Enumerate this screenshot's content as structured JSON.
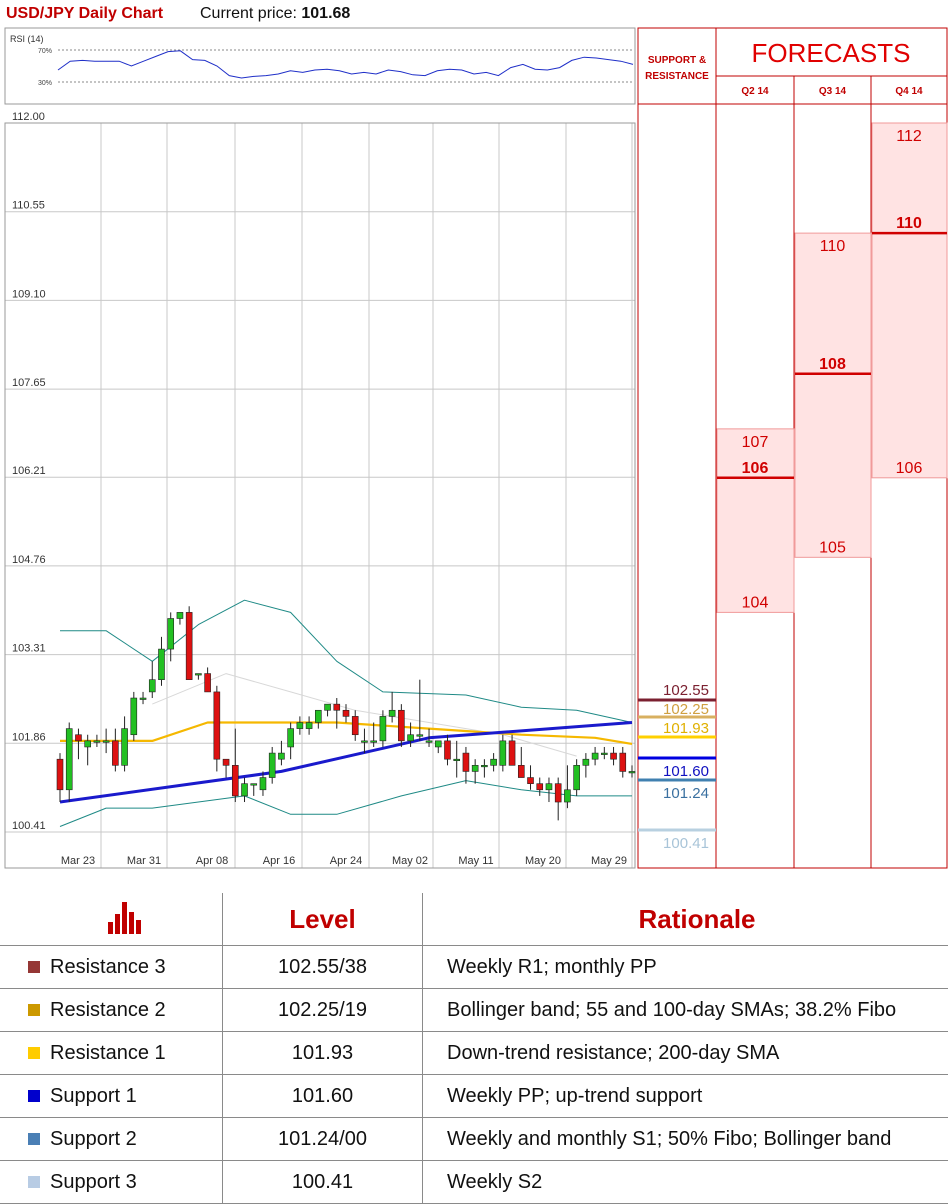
{
  "header": {
    "title": "USD/JPY Daily Chart",
    "price_label": "Current price:",
    "price_value": "101.68"
  },
  "chart_data": {
    "type": "candlestick",
    "title": "USD/JPY Daily Chart",
    "y_ticks": [
      "112.00",
      "110.55",
      "109.10",
      "107.65",
      "106.21",
      "104.76",
      "103.31",
      "101.86",
      "100.41"
    ],
    "ylim": [
      99.9,
      112.0
    ],
    "x_ticks": [
      "Mar 23",
      "Mar 31",
      "Apr 08",
      "Apr 16",
      "Apr 24",
      "May 02",
      "May 11",
      "May 20",
      "May 29"
    ],
    "grid": true,
    "candles": [
      {
        "o": 101.6,
        "h": 101.7,
        "l": 100.9,
        "c": 101.1
      },
      {
        "o": 101.1,
        "h": 102.2,
        "l": 100.9,
        "c": 102.1
      },
      {
        "o": 102.0,
        "h": 102.1,
        "l": 101.6,
        "c": 101.9
      },
      {
        "o": 101.8,
        "h": 102.0,
        "l": 101.5,
        "c": 101.9
      },
      {
        "o": 101.9,
        "h": 102.0,
        "l": 101.8,
        "c": 101.9
      },
      {
        "o": 101.9,
        "h": 102.1,
        "l": 101.7,
        "c": 101.9
      },
      {
        "o": 101.9,
        "h": 102.1,
        "l": 101.4,
        "c": 101.5
      },
      {
        "o": 101.5,
        "h": 102.3,
        "l": 101.4,
        "c": 102.1
      },
      {
        "o": 102.0,
        "h": 102.7,
        "l": 101.9,
        "c": 102.6
      },
      {
        "o": 102.6,
        "h": 102.7,
        "l": 102.5,
        "c": 102.6
      },
      {
        "o": 102.7,
        "h": 103.2,
        "l": 102.6,
        "c": 102.9
      },
      {
        "o": 102.9,
        "h": 103.6,
        "l": 102.8,
        "c": 103.4
      },
      {
        "o": 103.4,
        "h": 104.0,
        "l": 103.2,
        "c": 103.9
      },
      {
        "o": 103.9,
        "h": 104.0,
        "l": 103.8,
        "c": 104.0
      },
      {
        "o": 104.0,
        "h": 104.1,
        "l": 102.9,
        "c": 102.9
      },
      {
        "o": 103.0,
        "h": 103.0,
        "l": 102.9,
        "c": 103.0
      },
      {
        "o": 103.0,
        "h": 103.1,
        "l": 102.7,
        "c": 102.7
      },
      {
        "o": 102.7,
        "h": 102.8,
        "l": 101.4,
        "c": 101.6
      },
      {
        "o": 101.6,
        "h": 101.6,
        "l": 101.3,
        "c": 101.5
      },
      {
        "o": 101.5,
        "h": 102.1,
        "l": 100.9,
        "c": 101.0
      },
      {
        "o": 101.0,
        "h": 101.3,
        "l": 100.9,
        "c": 101.2
      },
      {
        "o": 101.2,
        "h": 101.2,
        "l": 101.0,
        "c": 101.2
      },
      {
        "o": 101.1,
        "h": 101.4,
        "l": 101.0,
        "c": 101.3
      },
      {
        "o": 101.3,
        "h": 101.8,
        "l": 101.2,
        "c": 101.7
      },
      {
        "o": 101.6,
        "h": 101.9,
        "l": 101.5,
        "c": 101.7
      },
      {
        "o": 101.8,
        "h": 102.2,
        "l": 101.6,
        "c": 102.1
      },
      {
        "o": 102.1,
        "h": 102.3,
        "l": 102.0,
        "c": 102.2
      },
      {
        "o": 102.1,
        "h": 102.3,
        "l": 102.0,
        "c": 102.2
      },
      {
        "o": 102.2,
        "h": 102.4,
        "l": 102.1,
        "c": 102.4
      },
      {
        "o": 102.4,
        "h": 102.5,
        "l": 102.3,
        "c": 102.5
      },
      {
        "o": 102.5,
        "h": 102.6,
        "l": 102.1,
        "c": 102.4
      },
      {
        "o": 102.4,
        "h": 102.5,
        "l": 102.2,
        "c": 102.3
      },
      {
        "o": 102.3,
        "h": 102.4,
        "l": 101.9,
        "c": 102.0
      },
      {
        "o": 101.9,
        "h": 102.1,
        "l": 101.7,
        "c": 101.9
      },
      {
        "o": 101.9,
        "h": 102.2,
        "l": 101.8,
        "c": 101.9
      },
      {
        "o": 101.9,
        "h": 102.4,
        "l": 101.8,
        "c": 102.3
      },
      {
        "o": 102.3,
        "h": 102.7,
        "l": 102.2,
        "c": 102.4
      },
      {
        "o": 102.4,
        "h": 102.5,
        "l": 101.8,
        "c": 101.9
      },
      {
        "o": 101.9,
        "h": 102.2,
        "l": 101.8,
        "c": 102.0
      },
      {
        "o": 102.0,
        "h": 102.9,
        "l": 101.9,
        "c": 102.0
      },
      {
        "o": 101.9,
        "h": 102.1,
        "l": 101.8,
        "c": 101.9
      },
      {
        "o": 101.8,
        "h": 101.9,
        "l": 101.7,
        "c": 101.9
      },
      {
        "o": 101.9,
        "h": 102.0,
        "l": 101.5,
        "c": 101.6
      },
      {
        "o": 101.6,
        "h": 101.9,
        "l": 101.3,
        "c": 101.6
      },
      {
        "o": 101.7,
        "h": 101.8,
        "l": 101.2,
        "c": 101.4
      },
      {
        "o": 101.4,
        "h": 101.6,
        "l": 101.2,
        "c": 101.5
      },
      {
        "o": 101.5,
        "h": 101.6,
        "l": 101.3,
        "c": 101.5
      },
      {
        "o": 101.5,
        "h": 101.7,
        "l": 101.4,
        "c": 101.6
      },
      {
        "o": 101.5,
        "h": 102.0,
        "l": 101.4,
        "c": 101.9
      },
      {
        "o": 101.9,
        "h": 102.0,
        "l": 101.5,
        "c": 101.5
      },
      {
        "o": 101.5,
        "h": 101.8,
        "l": 101.3,
        "c": 101.3
      },
      {
        "o": 101.3,
        "h": 101.5,
        "l": 101.1,
        "c": 101.2
      },
      {
        "o": 101.2,
        "h": 101.3,
        "l": 101.0,
        "c": 101.1
      },
      {
        "o": 101.1,
        "h": 101.3,
        "l": 100.9,
        "c": 101.2
      },
      {
        "o": 101.2,
        "h": 101.3,
        "l": 100.6,
        "c": 100.9
      },
      {
        "o": 100.9,
        "h": 101.5,
        "l": 100.8,
        "c": 101.1
      },
      {
        "o": 101.1,
        "h": 101.6,
        "l": 101.0,
        "c": 101.5
      },
      {
        "o": 101.5,
        "h": 101.7,
        "l": 101.3,
        "c": 101.6
      },
      {
        "o": 101.6,
        "h": 101.8,
        "l": 101.5,
        "c": 101.7
      },
      {
        "o": 101.7,
        "h": 101.8,
        "l": 101.6,
        "c": 101.7
      },
      {
        "o": 101.7,
        "h": 101.8,
        "l": 101.5,
        "c": 101.6
      },
      {
        "o": 101.7,
        "h": 101.8,
        "l": 101.3,
        "c": 101.4
      },
      {
        "o": 101.4,
        "h": 101.5,
        "l": 101.3,
        "c": 101.4
      }
    ],
    "sma_blue": [
      [
        0,
        100.9
      ],
      [
        24,
        101.4
      ],
      [
        40,
        101.95
      ],
      [
        62,
        102.2
      ]
    ],
    "sma_yellow": [
      [
        0,
        101.9
      ],
      [
        10,
        101.9
      ],
      [
        16,
        102.2
      ],
      [
        30,
        102.2
      ],
      [
        40,
        102.1
      ],
      [
        50,
        102.0
      ],
      [
        58,
        101.95
      ],
      [
        62,
        101.85
      ]
    ],
    "boll_upper": [
      [
        0,
        103.7
      ],
      [
        5,
        103.7
      ],
      [
        10,
        103.2
      ],
      [
        15,
        103.8
      ],
      [
        20,
        104.2
      ],
      [
        25,
        104.0
      ],
      [
        30,
        103.2
      ],
      [
        35,
        102.7
      ],
      [
        44,
        102.65
      ],
      [
        50,
        102.45
      ],
      [
        56,
        102.4
      ],
      [
        62,
        102.2
      ]
    ],
    "boll_lower": [
      [
        0,
        100.5
      ],
      [
        5,
        100.8
      ],
      [
        10,
        100.8
      ],
      [
        15,
        100.9
      ],
      [
        20,
        101.0
      ],
      [
        25,
        100.7
      ],
      [
        30,
        100.7
      ],
      [
        37,
        101.0
      ],
      [
        44,
        101.25
      ],
      [
        50,
        101.1
      ],
      [
        56,
        101.0
      ],
      [
        62,
        101.0
      ]
    ],
    "ma_grey": [
      [
        10,
        102.5
      ],
      [
        18,
        103.0
      ],
      [
        25,
        102.7
      ],
      [
        32,
        102.4
      ],
      [
        40,
        102.2
      ],
      [
        48,
        102.0
      ],
      [
        56,
        101.65
      ]
    ],
    "rsi": {
      "label": "RSI (14)",
      "levels": [
        "70%",
        "30%"
      ],
      "values": [
        45,
        56,
        57,
        56,
        56,
        56,
        50,
        56,
        62,
        68,
        69,
        58,
        57,
        50,
        38,
        35,
        37,
        38,
        40,
        44,
        42,
        45,
        46,
        44,
        40,
        42,
        40,
        45,
        43,
        39,
        38,
        44,
        46,
        45,
        40,
        42,
        38,
        48,
        52,
        46,
        45,
        48,
        57,
        61,
        60,
        58,
        56,
        52
      ]
    },
    "levels": [
      {
        "label": "102.55",
        "value": 102.55,
        "color": "#7b2030",
        "text_color": "#7b2030"
      },
      {
        "label": "102.25",
        "value": 102.25,
        "color": "#d8b060",
        "text_color": "#d0a040"
      },
      {
        "label": "101.93",
        "value": 101.93,
        "color": "#ffd000",
        "text_color": "#e0b000"
      },
      {
        "label": "101.60",
        "value": 101.6,
        "color": "#0000e0",
        "text_color": "#1010c0"
      },
      {
        "label": "101.24",
        "value": 101.24,
        "color": "#4080b0",
        "text_color": "#3a70a0"
      },
      {
        "label": "100.41",
        "value": 100.41,
        "color": "#b8d0e0",
        "text_color": "#a8c4d8"
      }
    ]
  },
  "forecasts": {
    "support_title_1": "SUPPORT &",
    "support_title_2": "RESISTANCE",
    "title": "FORECASTS",
    "columns": [
      {
        "label": "Q2 14",
        "high": "107",
        "mid": "106",
        "low": "104",
        "high_v": 107.0,
        "mid_v": 106.2,
        "low_v": 104.0
      },
      {
        "label": "Q3 14",
        "high": "110",
        "mid": "108",
        "low": "105",
        "high_v": 110.2,
        "mid_v": 107.9,
        "low_v": 104.9
      },
      {
        "label": "Q4 14",
        "high": "112",
        "mid": "110",
        "low": "106",
        "high_v": 112.0,
        "mid_v": 110.2,
        "low_v": 106.2
      }
    ]
  },
  "table": {
    "head_level": "Level",
    "head_rationale": "Rationale",
    "rows": [
      {
        "name": "Resistance 3",
        "level": "102.55/38",
        "rationale": "Weekly R1; monthly PP",
        "color": "#953735"
      },
      {
        "name": "Resistance 2",
        "level": "102.25/19",
        "rationale": "Bollinger band; 55 and 100-day SMAs; 38.2% Fibo",
        "color": "#cc9900"
      },
      {
        "name": "Resistance 1",
        "level": "101.93",
        "rationale": "Down-trend resistance; 200-day SMA",
        "color": "#ffcc00"
      },
      {
        "name": "Support 1",
        "level": "101.60",
        "rationale": "Weekly PP; up-trend support",
        "color": "#0000cc"
      },
      {
        "name": "Support 2",
        "level": "101.24/00",
        "rationale": "Weekly and monthly S1; 50% Fibo; Bollinger band",
        "color": "#4a7fb5"
      },
      {
        "name": "Support 3",
        "level": "100.41",
        "rationale": "Weekly S2",
        "color": "#b8cce4"
      }
    ]
  }
}
